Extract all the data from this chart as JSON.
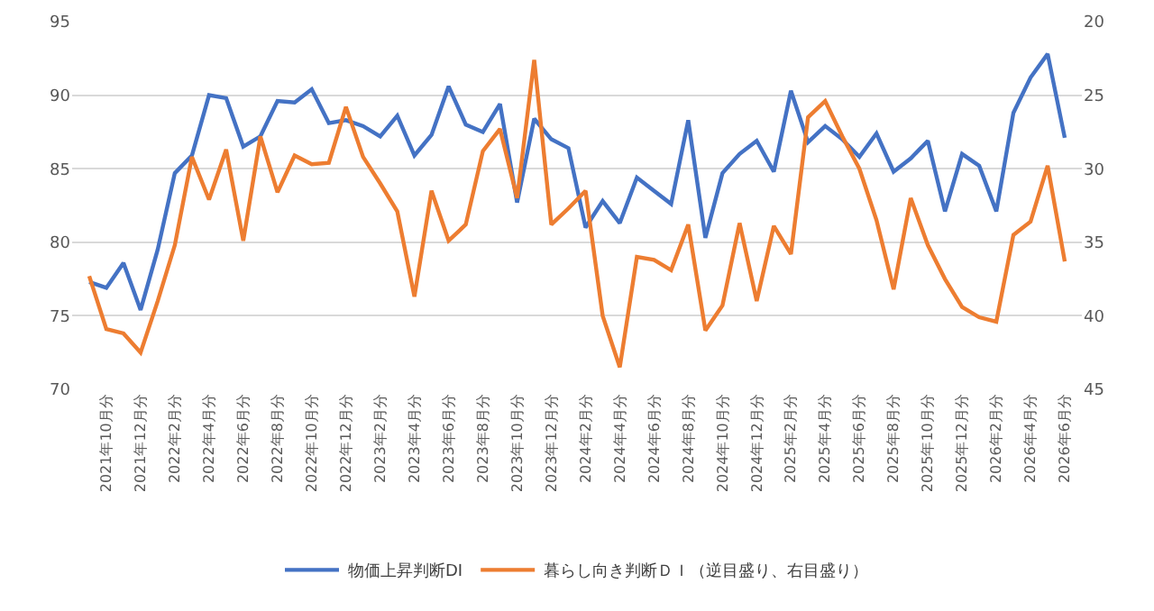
{
  "chart_data": {
    "type": "line",
    "categories": [
      null,
      "2021年10月分",
      null,
      "2021年12月分",
      null,
      "2022年2月分",
      null,
      "2022年4月分",
      null,
      "2022年6月分",
      null,
      "2022年8月分",
      null,
      "2022年10月分",
      null,
      "2022年12月分",
      null,
      "2023年2月分",
      null,
      "2023年4月分",
      null,
      "2023年6月分",
      null,
      "2023年8月分",
      null,
      "2023年10月分",
      null,
      "2023年12月分",
      null,
      "2024年2月分",
      null,
      "2024年4月分",
      null,
      "2024年6月分",
      null,
      "2024年8月分",
      null,
      "2024年10月分",
      null,
      "2024年12月分",
      null,
      "2025年2月分",
      null,
      "2025年4月分",
      null,
      "2025年6月分",
      null,
      "2025年8月分",
      null,
      "2025年10月分",
      null,
      "2025年12月分",
      null,
      "2026年2月分",
      null,
      "2026年4月分",
      null,
      "2026年6月分"
    ],
    "series": [
      {
        "name": "物価上昇判断DI",
        "color": "#4472c4",
        "values": [
          77.3,
          76.9,
          78.6,
          75.4,
          79.5,
          84.7,
          85.9,
          90.0,
          89.8,
          86.5,
          87.2,
          89.6,
          89.5,
          90.4,
          88.1,
          88.3,
          87.9,
          87.2,
          88.6,
          85.9,
          87.3,
          90.6,
          88.0,
          87.5,
          89.4,
          82.7,
          88.4,
          87.0,
          86.4,
          81.0,
          82.8,
          81.3,
          84.4,
          83.5,
          82.6,
          88.3,
          80.3,
          84.7,
          86.0,
          86.9,
          84.8,
          90.3,
          86.8,
          87.9,
          87.0,
          85.8,
          87.4,
          84.8,
          85.7,
          86.9,
          82.1,
          86.0,
          85.2,
          82.1,
          88.8,
          91.2,
          92.8,
          87.1
        ]
      },
      {
        "name": "暮らし向き判断ＤＩ（逆目盛り、右目盛り）",
        "color": "#ed7d31",
        "axis": "y2",
        "values": [
          37.3,
          40.9,
          41.2,
          42.5,
          39.0,
          35.2,
          29.2,
          32.1,
          28.7,
          34.9,
          27.8,
          31.6,
          29.1,
          29.7,
          29.6,
          25.8,
          29.2,
          31.0,
          32.9,
          38.7,
          31.5,
          34.9,
          33.8,
          28.8,
          27.3,
          32.0,
          22.6,
          33.8,
          32.7,
          31.5,
          40.0,
          43.5,
          36.0,
          36.2,
          36.9,
          33.8,
          41.0,
          39.3,
          33.7,
          39.0,
          33.9,
          35.8,
          26.5,
          25.4,
          27.8,
          30.0,
          33.5,
          38.2,
          32.0,
          35.2,
          37.5,
          39.4,
          40.1,
          40.4,
          34.5,
          33.6,
          29.8,
          36.3
        ]
      }
    ],
    "ylim": [
      70,
      95
    ],
    "yticks": [
      70,
      75,
      80,
      85,
      90,
      95
    ],
    "y2lim": [
      45,
      20
    ],
    "y2ticks": [
      20,
      25,
      30,
      35,
      40,
      45
    ],
    "grid": "y",
    "legend": "bottom",
    "marker": "none",
    "line_style": "solid"
  }
}
